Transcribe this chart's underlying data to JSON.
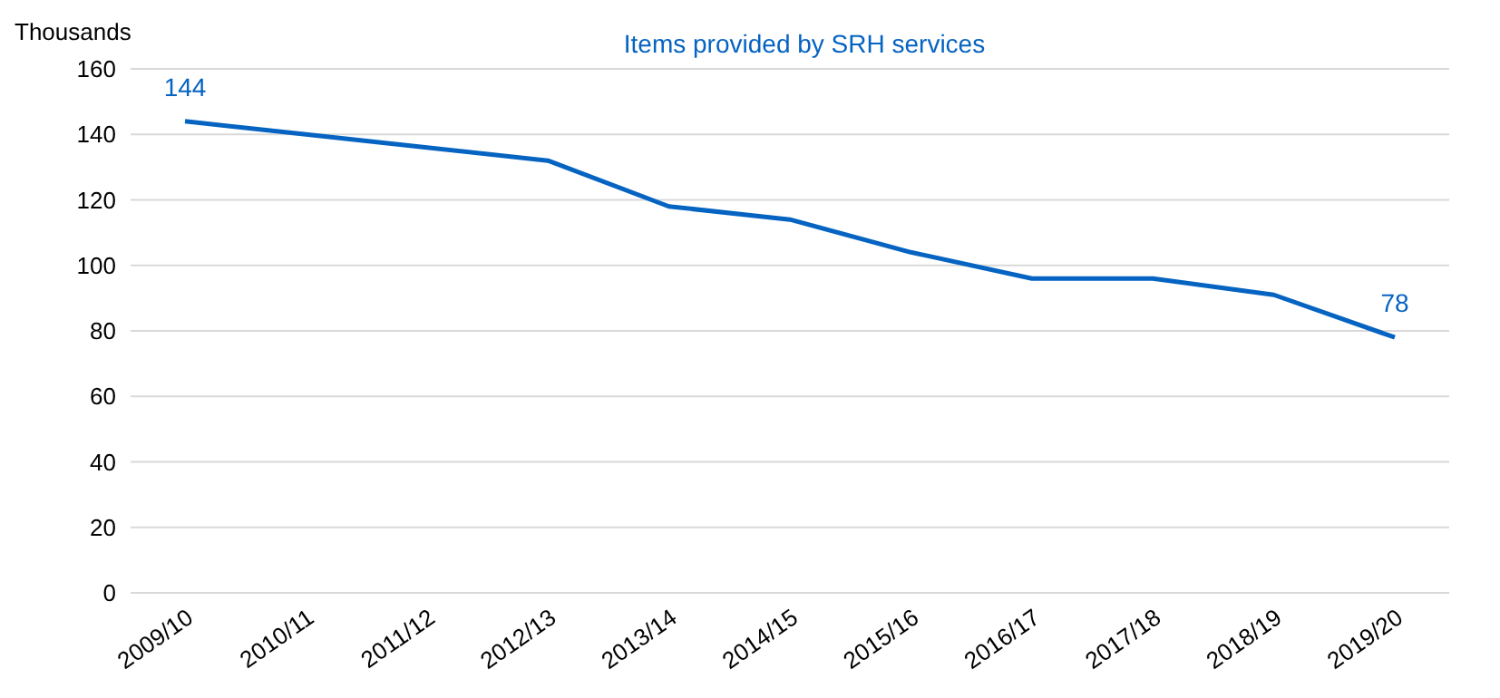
{
  "chart_data": {
    "type": "line",
    "title": "Items provided by SRH services",
    "ylabel": "Thousands",
    "categories": [
      "2009/10",
      "2010/11",
      "2011/12",
      "2012/13",
      "2013/14",
      "2014/15",
      "2015/16",
      "2016/17",
      "2017/18",
      "2018/19",
      "2019/20"
    ],
    "series": [
      {
        "color": "#0563c1",
        "values": [
          144,
          140,
          136,
          132,
          118,
          114,
          104,
          96,
          96,
          91,
          78
        ],
        "value_labels": [
          "144",
          null,
          null,
          null,
          null,
          null,
          null,
          null,
          null,
          null,
          "78"
        ]
      }
    ],
    "ylim": [
      0,
      160
    ],
    "yticks": [
      0,
      20,
      40,
      60,
      80,
      100,
      120,
      140,
      160
    ],
    "grid": "y",
    "legend": false,
    "marker": "none",
    "line_style": "solid"
  }
}
